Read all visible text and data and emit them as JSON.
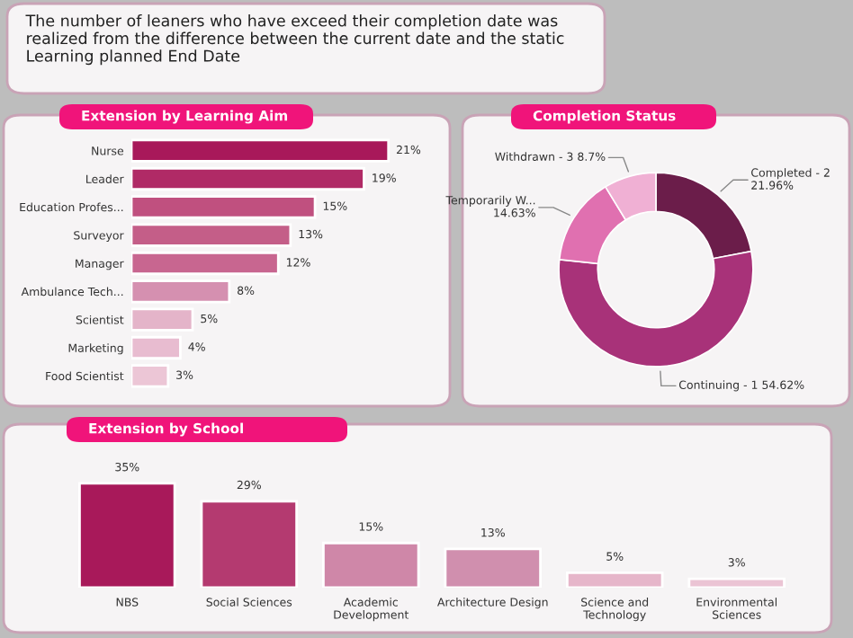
{
  "chart_data": [
    {
      "type": "other",
      "annotations": [
        "The number of leaners who have exceed their completion date was realized from the difference between the current date and the static Learning planned End Date"
      ]
    },
    {
      "type": "bar",
      "orientation": "horizontal",
      "title": "Extension by Learning Aim",
      "categories": [
        "Nurse",
        "Leader",
        "Education Profes...",
        "Surveyor",
        "Manager",
        "Ambulance Tech...",
        "Scientist",
        "Marketing",
        "Food Scientist"
      ],
      "values": [
        21,
        19,
        15,
        13,
        12,
        8,
        5,
        4,
        3
      ],
      "value_labels": [
        "21%",
        "19%",
        "15%",
        "13%",
        "12%",
        "8%",
        "5%",
        "4%",
        "3%"
      ],
      "colors": [
        "#a8195a",
        "#b02a66",
        "#c0507f",
        "#c45e88",
        "#c86690",
        "#d590b0",
        "#e4b4c9",
        "#e8bcd0",
        "#ecc6d6"
      ]
    },
    {
      "type": "donut",
      "title": "Completion Status",
      "categories": [
        "Completed - 2",
        "Continuing - 1",
        "Temporarily W...",
        "Withdrawn - 3"
      ],
      "values": [
        21.96,
        54.62,
        14.63,
        8.7
      ],
      "value_labels": [
        "21.96%",
        "54.62%",
        "14.63%",
        "8.7%"
      ],
      "colors": [
        "#6b1d4a",
        "#a83279",
        "#e070b0",
        "#f0b0d4"
      ]
    },
    {
      "type": "bar",
      "title": "Extension by School",
      "categories": [
        "NBS",
        "Social Sciences",
        "Academic Development",
        "Architecture Design",
        "Science and Technology",
        "Environmental Sciences"
      ],
      "values": [
        35,
        29,
        15,
        13,
        5,
        3
      ],
      "value_labels": [
        "35%",
        "29%",
        "15%",
        "13%",
        "5%",
        "3%"
      ],
      "colors": [
        "#a8195a",
        "#b43a70",
        "#cf87a8",
        "#d08fae",
        "#e6b6ca",
        "#ebc4d4"
      ]
    }
  ]
}
